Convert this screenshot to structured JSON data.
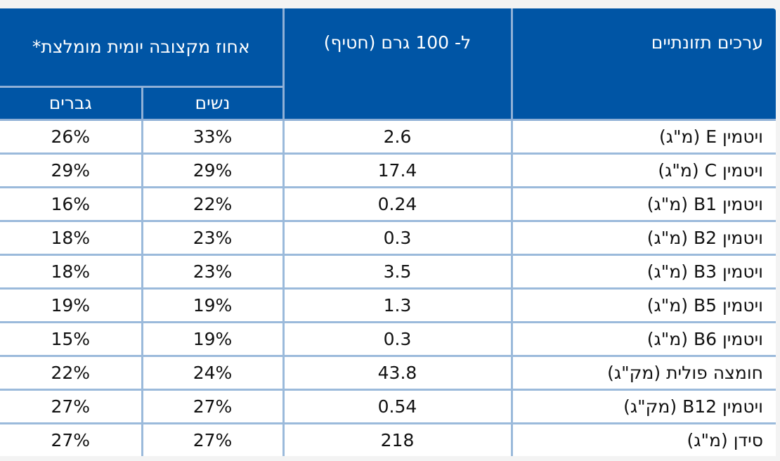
{
  "header": {
    "nutrient": "ערכים תזונתיים",
    "per_100g": "ל- 100 גרם (חטיף)",
    "daily_pct": "אחוז מקצובה יומית מומלצת*",
    "women": "נשים",
    "men": "גברים"
  },
  "rows": [
    {
      "nutrient": "ויטמין E (מ\"ג)",
      "per_100g": "2.6",
      "women": "33%",
      "men": "26%"
    },
    {
      "nutrient": "ויטמין C (מ\"ג)",
      "per_100g": "17.4",
      "women": "29%",
      "men": "29%"
    },
    {
      "nutrient": "ויטמין B1 (מ\"ג)",
      "per_100g": "0.24",
      "women": "22%",
      "men": "16%"
    },
    {
      "nutrient": "ויטמין B2 (מ\"ג)",
      "per_100g": "0.3",
      "women": "23%",
      "men": "18%"
    },
    {
      "nutrient": "ויטמין B3 (מ\"ג)",
      "per_100g": "3.5",
      "women": "23%",
      "men": "18%"
    },
    {
      "nutrient": "ויטמין B5 (מ\"ג)",
      "per_100g": "1.3",
      "women": "19%",
      "men": "19%"
    },
    {
      "nutrient": "ויטמין B6 (מ\"ג)",
      "per_100g": "0.3",
      "women": "19%",
      "men": "15%"
    },
    {
      "nutrient": "חומצה פולית (מק\"ג)",
      "per_100g": "43.8",
      "women": "24%",
      "men": "22%"
    },
    {
      "nutrient": "ויטמין B12 (מק\"ג)",
      "per_100g": "0.54",
      "women": "27%",
      "men": "27%"
    },
    {
      "nutrient": "סידן (מ\"ג)",
      "per_100g": "218",
      "women": "27%",
      "men": "27%"
    }
  ],
  "colors": {
    "header_bg": "#0055a5",
    "grid": "#9bbadb"
  }
}
